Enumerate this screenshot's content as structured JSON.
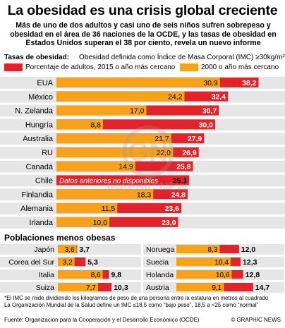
{
  "title": "La obesidad es una crisis global creciente",
  "subtitle": "Más de uno de dos adultos y casi uno de seis niños sufren sobrepeso y obesidad en el área de 36 naciones de la OCDE, y las tasas de obesidad en Estados Unidos superan el 38 por ciento, revela un nuevo informe",
  "legend": {
    "label": "Tasas de obesidad:",
    "definition": "Obesidad definida como Índice de Masa Corporal (IMC) ≥30kg/m²*",
    "series_2015": "Porcentaje de adultos, 2015 o año más cercano",
    "series_2000": "2000 o año más cercano"
  },
  "colors": {
    "red": "#e2232a",
    "orange": "#f7a21b",
    "row_band": "#e6e6e6"
  },
  "chart_data": [
    {
      "type": "bar",
      "orientation": "horizontal",
      "series": [
        {
          "name": "Porcentaje de adultos, 2015 o año más cercano",
          "values": [
            38.2,
            32.4,
            30.7,
            30.0,
            27.9,
            26.9,
            25.8,
            25.1,
            24.8,
            23.6,
            23.0
          ]
        },
        {
          "name": "2000 o año más cercano",
          "values": [
            30.9,
            24.2,
            17.0,
            8.8,
            21.7,
            22.0,
            14.9,
            null,
            18.3,
            11.5,
            10.0
          ]
        }
      ],
      "categories": [
        "EUA",
        "México",
        "N. Zelanda",
        "Hungría",
        "Australia",
        "RU",
        "Canadá",
        "Chile",
        "Finlandia",
        "Alemania",
        "Irlanda"
      ],
      "annotations": [
        {
          "category": "Chile",
          "text": "Datos anteriores no disponibles"
        }
      ]
    },
    {
      "type": "bar",
      "orientation": "horizontal",
      "title": "Poblaciones menos obesas",
      "categories": [
        "Japón",
        "Corea del Sur",
        "Italia",
        "Suiza",
        "Noruega",
        "Suecia",
        "Holanda",
        "Austria"
      ],
      "series": [
        {
          "name": "Porcentaje de adultos, 2015 o año más cercano",
          "values": [
            3.7,
            5.3,
            9.8,
            10.3,
            12.0,
            12.3,
            12.8,
            14.7
          ]
        },
        {
          "name": "2000 o año más cercano",
          "values": [
            3.6,
            3.2,
            8.6,
            7.7,
            8.3,
            10.4,
            10.6,
            9.1
          ]
        }
      ]
    }
  ],
  "footnote": [
    "*El IMC se mide dividiendo los kilogramos de peso de una persona entre la estatura en metros al cuadrado",
    "La Organización Mundial de la Salud define un IMC  ≤18,5 como “bajo peso”, 18,5 a <25 como “normal”"
  ],
  "source": "Fuente: Organización para la Cooperación y el Desarrollo Económico (OCDE)",
  "credit": "© GRAPHIC NEWS",
  "watermark_text": "GRAPHIC NEWS"
}
